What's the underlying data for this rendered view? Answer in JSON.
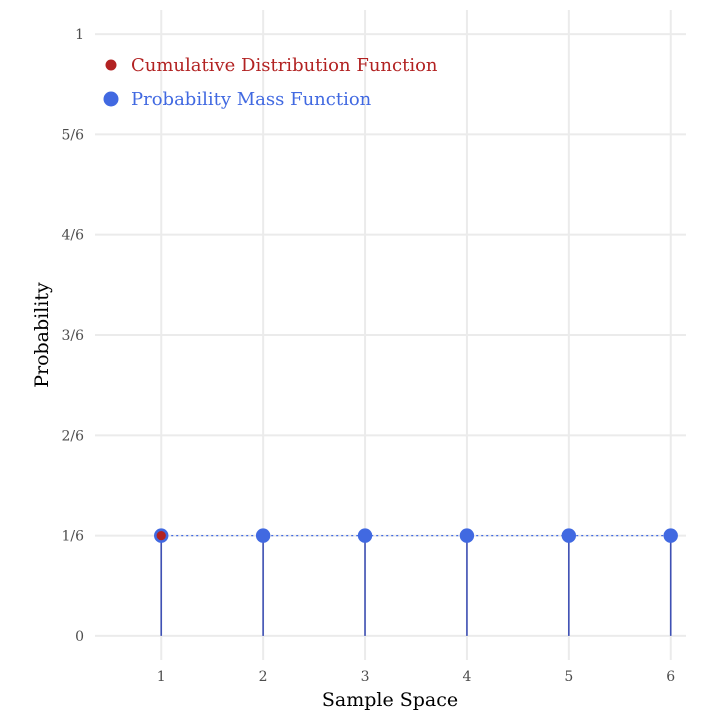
{
  "chart_data": {
    "type": "scatter",
    "xlabel": "Sample Space",
    "ylabel": "Probability",
    "xlim": [
      0.35,
      6.15
    ],
    "ylim": [
      -0.04,
      1.04
    ],
    "x_ticks": [
      1,
      2,
      3,
      4,
      5,
      6
    ],
    "y_ticks": [
      {
        "value": 0,
        "label": "0"
      },
      {
        "value": 0.1667,
        "label": "1/6"
      },
      {
        "value": 0.3333,
        "label": "2/6"
      },
      {
        "value": 0.5,
        "label": "3/6"
      },
      {
        "value": 0.6667,
        "label": "4/6"
      },
      {
        "value": 0.8333,
        "label": "5/6"
      },
      {
        "value": 1,
        "label": "1"
      }
    ],
    "grid": true,
    "legend_position": "top-left",
    "legend": [
      {
        "label": "Cumulative Distribution Function",
        "color": "#b22222"
      },
      {
        "label": "Probability Mass Function",
        "color": "#4169e1"
      }
    ],
    "series": [
      {
        "name": "Cumulative Distribution Function",
        "color": "#b22222",
        "x": [
          1
        ],
        "y": [
          0.1667
        ]
      },
      {
        "name": "Probability Mass Function",
        "color": "#4169e1",
        "x": [
          1,
          2,
          3,
          4,
          5,
          6
        ],
        "y": [
          0.1667,
          0.1667,
          0.1667,
          0.1667,
          0.1667,
          0.1667
        ]
      }
    ],
    "stem_color": "#3f51b5"
  }
}
